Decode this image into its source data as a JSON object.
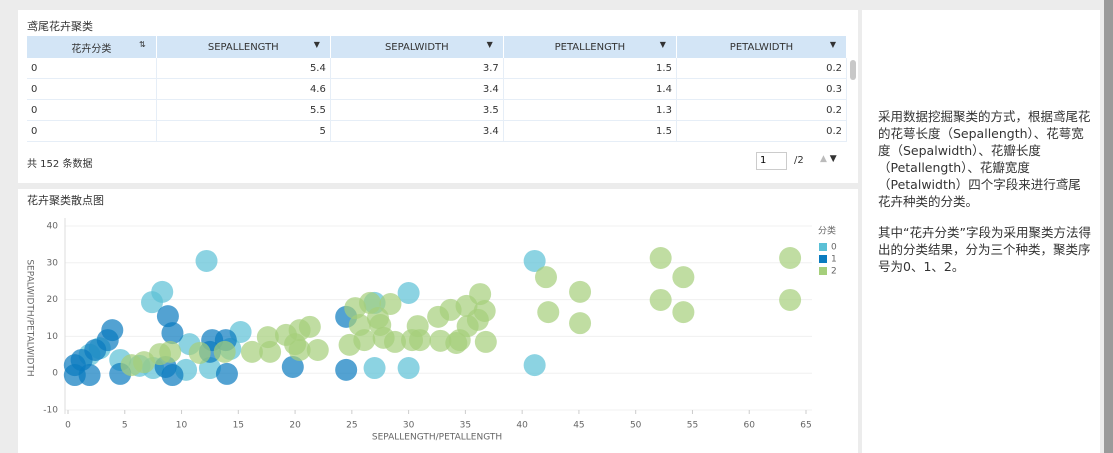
{
  "table_panel": {
    "title": "鸢尾花卉聚类",
    "table": {
      "columns": [
        "花卉分类",
        "SEPALLENGTH",
        "SEPALWIDTH",
        "PETALLENGTH",
        "PETALWIDTH"
      ],
      "rows": [
        [
          0,
          5.4,
          3.7,
          1.5,
          0.2
        ],
        [
          0,
          4.6,
          3.4,
          1.4,
          0.3
        ],
        [
          0,
          5.5,
          3.5,
          1.3,
          0.2
        ],
        [
          0,
          5,
          3.4,
          1.5,
          0.2
        ]
      ]
    },
    "footer": "共 152 条数据",
    "page": 1,
    "page_total": "/2"
  },
  "chart_data": {
    "type": "scatter",
    "title": "花卉聚类散点图",
    "xlabel": "SEPALLENGTH/PETALLENGTH",
    "ylabel": "SEPALWIDTH/PETALWIDTH",
    "legend_title": "分类",
    "legend": "right",
    "grid": true,
    "xlim": [
      0,
      65
    ],
    "xticks": [
      0,
      5,
      10,
      15,
      20,
      25,
      30,
      35,
      40,
      45,
      50,
      55,
      60,
      65
    ],
    "ylim": [
      -10,
      40
    ],
    "yticks": [
      -10,
      0,
      10,
      20,
      30,
      40
    ],
    "series": [
      {
        "name": "0",
        "color": "#5bc0d6",
        "x": [
          12.2,
          8.3,
          7.4,
          41.1,
          41.1,
          30.0,
          27.0,
          30.0,
          27.0,
          15.2,
          10.7,
          14.3,
          12.5,
          10.4,
          4.6,
          2.8,
          1.9,
          6.3,
          7.5
        ],
        "values": [
          30.5,
          22.1,
          19.3,
          30.5,
          2.2,
          21.8,
          19.1,
          1.4,
          1.4,
          11.2,
          7.9,
          6.6,
          1.4,
          0.9,
          3.6,
          6.8,
          5.0,
          2.0,
          1.4
        ]
      },
      {
        "name": "1",
        "color": "#0a7bbf",
        "x": [
          0.6,
          0.6,
          1.2,
          2.4,
          3.5,
          3.9,
          8.8,
          9.2,
          9.2,
          8.6,
          12.7,
          13.9,
          12.5,
          14.0,
          19.8,
          24.5,
          24.5,
          1.9,
          4.6
        ],
        "values": [
          2.2,
          -0.5,
          3.6,
          6.3,
          9.0,
          11.7,
          15.5,
          10.9,
          -0.5,
          1.7,
          9.0,
          9.0,
          5.8,
          -0.2,
          1.7,
          0.9,
          15.3,
          -0.5,
          -0.2
        ]
      },
      {
        "name": "2",
        "color": "#a5cf7b",
        "x": [
          17.6,
          19.2,
          20.4,
          21.3,
          20.4,
          17.8,
          16.2,
          13.8,
          11.6,
          9.0,
          8.1,
          6.7,
          5.6,
          25.3,
          26.6,
          28.4,
          27.3,
          25.7,
          27.5,
          24.8,
          26.1,
          27.8,
          28.8,
          30.8,
          31.0,
          32.6,
          33.7,
          35.1,
          36.3,
          36.7,
          36.8,
          36.1,
          34.5,
          32.8,
          34.2,
          42.1,
          45.1,
          42.3,
          45.1,
          52.2,
          54.2,
          52.2,
          54.2,
          63.6,
          63.6,
          20.0,
          22.0,
          30.3,
          35.2
        ],
        "values": [
          9.8,
          10.4,
          11.7,
          12.6,
          6.3,
          5.8,
          5.8,
          5.8,
          5.5,
          5.8,
          5.2,
          3.0,
          2.2,
          17.7,
          19.1,
          18.8,
          15.0,
          13.1,
          13.1,
          7.7,
          9.0,
          9.6,
          8.5,
          12.8,
          9.0,
          15.3,
          17.2,
          18.3,
          21.5,
          16.9,
          8.5,
          14.5,
          9.0,
          8.8,
          8.2,
          26.1,
          22.1,
          16.6,
          13.6,
          31.3,
          26.1,
          19.9,
          16.6,
          31.3,
          19.9,
          7.9,
          6.3,
          9.0,
          12.8
        ]
      }
    ]
  },
  "description": [
    "采用数据挖掘聚类的方式，根据鸢尾花的花萼长度（Sepallength）、花萼宽度（Sepalwidth）、花瓣长度（Petallength）、花瓣宽度（Petalwidth）四个字段来进行鸢尾花卉种类的分类。",
    "其中“花卉分类”字段为采用聚类方法得出的分类结果，分为三个种类，聚类序号为0、1、2。"
  ]
}
